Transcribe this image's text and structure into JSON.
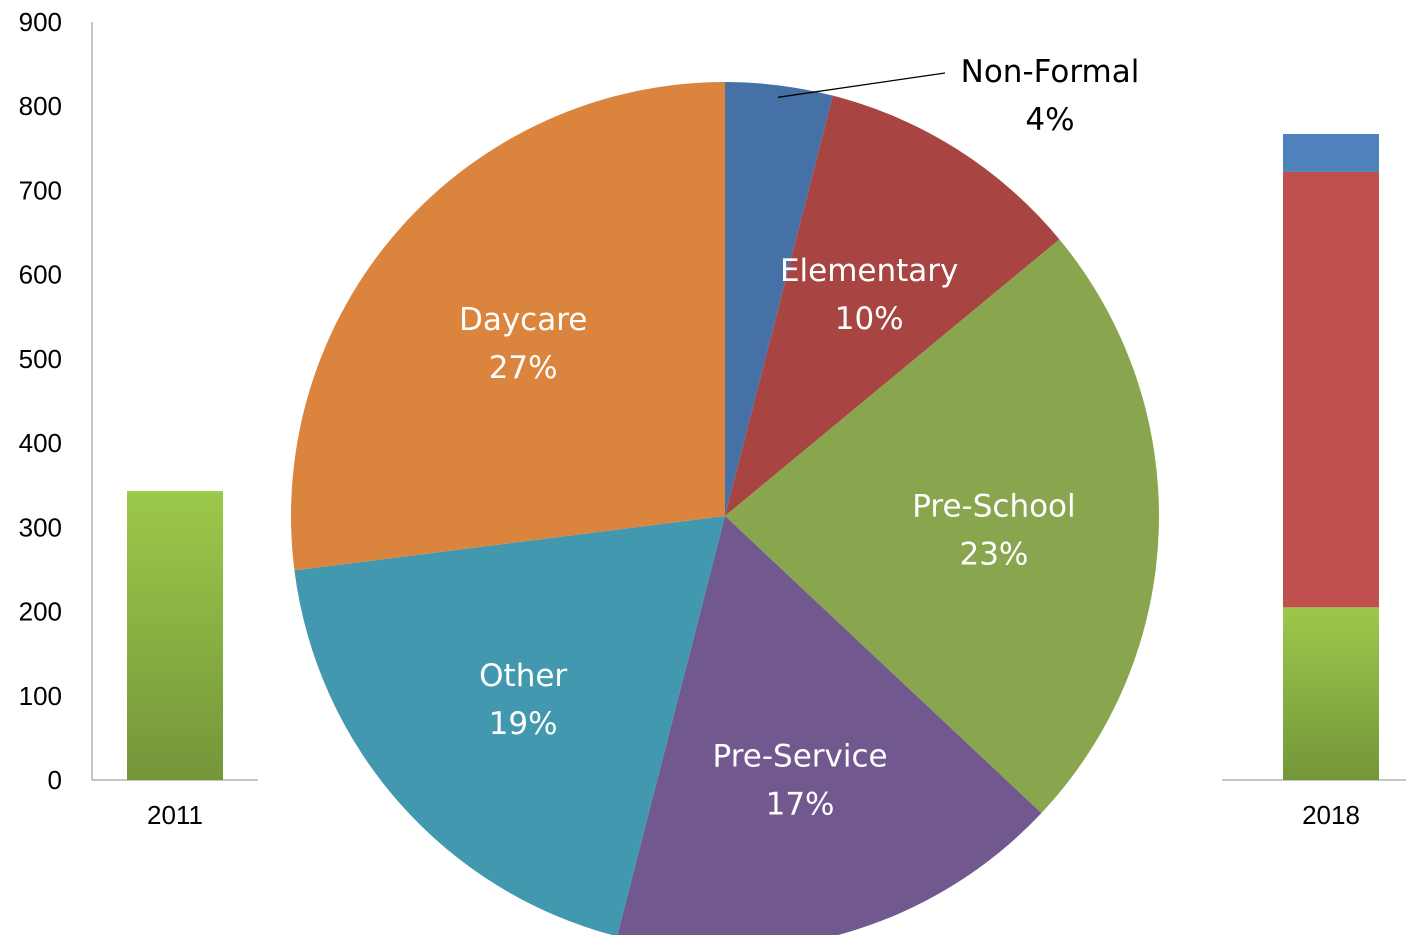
{
  "chart_data": [
    {
      "type": "bar",
      "categories": [
        "2011",
        "2018"
      ],
      "ylim": [
        0,
        900
      ],
      "yticks": [
        0,
        100,
        200,
        300,
        400,
        500,
        600,
        700,
        800,
        900
      ],
      "grid": false,
      "series": [
        {
          "values": [
            343,
            205
          ],
          "color": "#8db646"
        },
        {
          "values": [
            0,
            517
          ],
          "color": "#c0504d"
        },
        {
          "values": [
            0,
            45
          ],
          "color": "#4f81bd"
        }
      ]
    },
    {
      "type": "pie",
      "slices": [
        {
          "label": "Non-Formal",
          "pct": "4%",
          "value": 4,
          "color": "#4671a6",
          "label_color": "#000000"
        },
        {
          "label": "Elementary",
          "pct": "10%",
          "value": 10,
          "color": "#a84543",
          "label_color": "#ffffff"
        },
        {
          "label": "Pre-School",
          "pct": "23%",
          "value": 23,
          "color": "#89a54e",
          "label_color": "#ffffff"
        },
        {
          "label": "Pre-Service",
          "pct": "17%",
          "value": 17,
          "color": "#71588f",
          "label_color": "#ffffff"
        },
        {
          "label": "Other",
          "pct": "19%",
          "value": 19,
          "color": "#4298af",
          "label_color": "#ffffff"
        },
        {
          "label": "Daycare",
          "pct": "27%",
          "value": 27,
          "color": "#db843d",
          "label_color": "#ffffff"
        }
      ]
    }
  ]
}
